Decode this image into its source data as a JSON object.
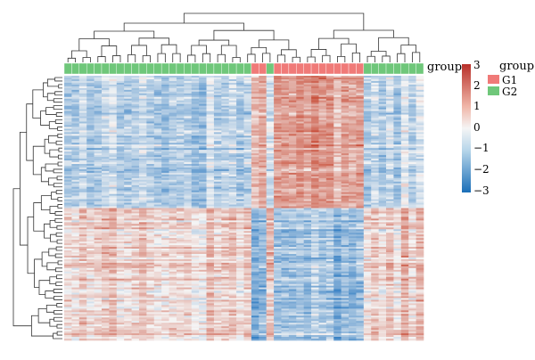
{
  "chart_data": {
    "type": "heatmap",
    "title": "",
    "annotation_row_label": "group",
    "color_scale": {
      "min": -3,
      "max": 3,
      "ticks": [
        "3",
        "2",
        "1",
        "0",
        "−1",
        "−2",
        "−3"
      ],
      "low_color": "#2a78c0",
      "mid_color": "#f5f5f5",
      "high_color": "#c6452f"
    },
    "legend": {
      "title": "group",
      "entries": [
        {
          "label": "G1",
          "color": "#f07a78"
        },
        {
          "label": "G2",
          "color": "#6fc77a"
        }
      ]
    },
    "columns": {
      "count": 48,
      "groups": [
        "G2",
        "G2",
        "G2",
        "G2",
        "G2",
        "G2",
        "G2",
        "G2",
        "G2",
        "G2",
        "G2",
        "G2",
        "G2",
        "G2",
        "G2",
        "G2",
        "G2",
        "G2",
        "G2",
        "G2",
        "G2",
        "G2",
        "G2",
        "G2",
        "G2",
        "G1",
        "G1",
        "G2",
        "G1",
        "G1",
        "G1",
        "G1",
        "G1",
        "G1",
        "G1",
        "G1",
        "G1",
        "G1",
        "G1",
        "G1",
        "G2",
        "G2",
        "G2",
        "G2",
        "G2",
        "G2",
        "G2",
        "G2"
      ]
    },
    "rows": {
      "count": 150
    },
    "blocks": [
      {
        "rows": "cluster-1",
        "columns": "G2",
        "mean_value": -0.9
      },
      {
        "rows": "cluster-1",
        "columns": "G1",
        "mean_value": 1.4
      },
      {
        "rows": "cluster-2",
        "columns": "G2",
        "mean_value": 0.6
      },
      {
        "rows": "cluster-2",
        "columns": "G1",
        "mean_value": -1.3
      }
    ]
  }
}
